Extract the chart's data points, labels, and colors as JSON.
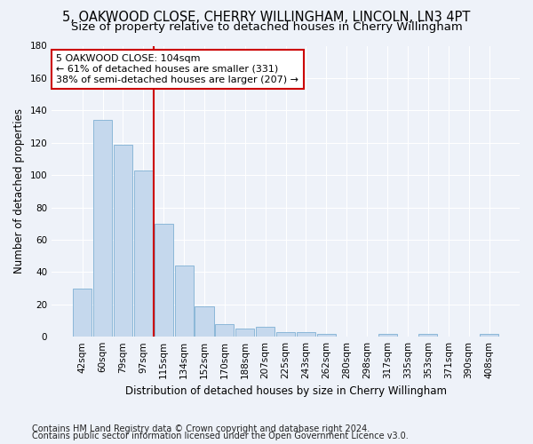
{
  "title1": "5, OAKWOOD CLOSE, CHERRY WILLINGHAM, LINCOLN, LN3 4PT",
  "title2": "Size of property relative to detached houses in Cherry Willingham",
  "xlabel": "Distribution of detached houses by size in Cherry Willingham",
  "ylabel": "Number of detached properties",
  "footer1": "Contains HM Land Registry data © Crown copyright and database right 2024.",
  "footer2": "Contains public sector information licensed under the Open Government Licence v3.0.",
  "bar_labels": [
    "42sqm",
    "60sqm",
    "79sqm",
    "97sqm",
    "115sqm",
    "134sqm",
    "152sqm",
    "170sqm",
    "188sqm",
    "207sqm",
    "225sqm",
    "243sqm",
    "262sqm",
    "280sqm",
    "298sqm",
    "317sqm",
    "335sqm",
    "353sqm",
    "371sqm",
    "390sqm",
    "408sqm"
  ],
  "bar_values": [
    30,
    134,
    119,
    103,
    70,
    44,
    19,
    8,
    5,
    6,
    3,
    3,
    2,
    0,
    0,
    2,
    0,
    2,
    0,
    0,
    2
  ],
  "bar_color": "#c5d8ed",
  "bar_edgecolor": "#7fb0d4",
  "vline_x": 3.5,
  "vline_color": "#cc0000",
  "annotation_line1": "5 OAKWOOD CLOSE: 104sqm",
  "annotation_line2": "← 61% of detached houses are smaller (331)",
  "annotation_line3": "38% of semi-detached houses are larger (207) →",
  "annotation_box_color": "#ffffff",
  "annotation_box_edgecolor": "#cc0000",
  "ylim": [
    0,
    180
  ],
  "yticks": [
    0,
    20,
    40,
    60,
    80,
    100,
    120,
    140,
    160,
    180
  ],
  "bg_color": "#eef2f9",
  "grid_color": "#ffffff",
  "title_fontsize": 10.5,
  "subtitle_fontsize": 9.5,
  "axis_label_fontsize": 8.5,
  "tick_fontsize": 7.5,
  "annotation_fontsize": 8,
  "footer_fontsize": 7
}
